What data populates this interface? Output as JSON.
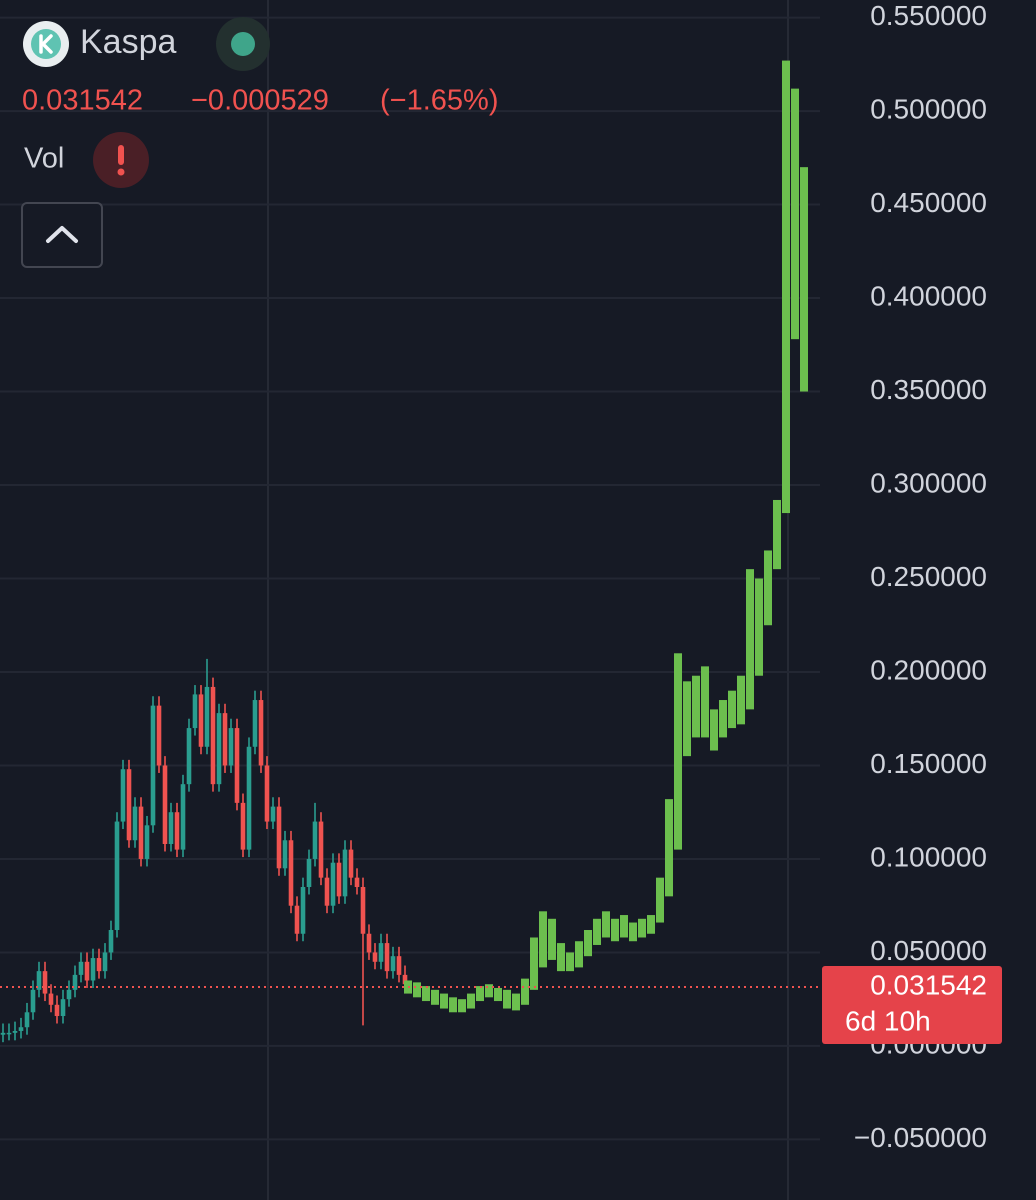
{
  "chart_data": {
    "type": "candlestick",
    "symbol": "Kaspa",
    "last_price": 0.031542,
    "change": "−0.000529",
    "change_percent": "(−1.65%)",
    "volume_label": "Vol",
    "countdown": "6d 10h",
    "ylim": [
      -0.0824,
      0.5594
    ],
    "yticks": [
      {
        "value": 0.55,
        "label": "0.550000"
      },
      {
        "value": 0.5,
        "label": "0.500000"
      },
      {
        "value": 0.45,
        "label": "0.450000"
      },
      {
        "value": 0.4,
        "label": "0.400000"
      },
      {
        "value": 0.35,
        "label": "0.350000"
      },
      {
        "value": 0.3,
        "label": "0.300000"
      },
      {
        "value": 0.25,
        "label": "0.250000"
      },
      {
        "value": 0.2,
        "label": "0.200000"
      },
      {
        "value": 0.15,
        "label": "0.150000"
      },
      {
        "value": 0.1,
        "label": "0.100000"
      },
      {
        "value": 0.05,
        "label": "0.050000"
      },
      {
        "value": 0,
        "label": "0.000000"
      },
      {
        "value": -0.05,
        "label": "−0.050000"
      }
    ],
    "grid": true,
    "up_color": "#2a9d8f",
    "down_color": "#ef5350",
    "open": [
      0.006,
      0.007,
      0.007,
      0.008,
      0.01,
      0.018,
      0.03,
      0.04,
      0.028,
      0.022,
      0.016,
      0.025,
      0.03,
      0.038,
      0.045,
      0.035,
      0.047,
      0.04,
      0.05,
      0.062,
      0.12,
      0.148,
      0.11,
      0.128,
      0.1,
      0.118,
      0.182,
      0.15,
      0.108,
      0.125,
      0.105,
      0.14,
      0.17,
      0.188,
      0.16,
      0.192,
      0.14,
      0.178,
      0.15,
      0.17,
      0.13,
      0.105,
      0.16,
      0.185,
      0.15,
      0.12,
      0.128,
      0.095,
      0.11,
      0.075,
      0.06,
      0.085,
      0.1,
      0.12,
      0.09,
      0.075,
      0.098,
      0.08,
      0.105,
      0.09,
      0.085,
      0.06,
      0.05,
      0.045,
      0.055,
      0.04,
      0.048,
      0.038
    ],
    "high": [
      0.012,
      0.012,
      0.013,
      0.015,
      0.023,
      0.035,
      0.045,
      0.045,
      0.033,
      0.027,
      0.03,
      0.035,
      0.043,
      0.05,
      0.05,
      0.052,
      0.052,
      0.055,
      0.067,
      0.125,
      0.153,
      0.153,
      0.133,
      0.133,
      0.123,
      0.187,
      0.187,
      0.155,
      0.13,
      0.13,
      0.145,
      0.175,
      0.193,
      0.193,
      0.207,
      0.197,
      0.183,
      0.183,
      0.175,
      0.175,
      0.135,
      0.165,
      0.19,
      0.19,
      0.155,
      0.133,
      0.133,
      0.115,
      0.115,
      0.08,
      0.09,
      0.105,
      0.13,
      0.125,
      0.095,
      0.103,
      0.103,
      0.11,
      0.11,
      0.095,
      0.09,
      0.065,
      0.055,
      0.06,
      0.06,
      0.053,
      0.053,
      0.043
    ],
    "low": [
      0.002,
      0.003,
      0.003,
      0.004,
      0.006,
      0.014,
      0.026,
      0.024,
      0.018,
      0.012,
      0.012,
      0.021,
      0.026,
      0.034,
      0.031,
      0.031,
      0.036,
      0.036,
      0.046,
      0.058,
      0.116,
      0.106,
      0.106,
      0.096,
      0.096,
      0.114,
      0.146,
      0.104,
      0.104,
      0.101,
      0.101,
      0.136,
      0.166,
      0.156,
      0.156,
      0.136,
      0.136,
      0.146,
      0.146,
      0.126,
      0.101,
      0.101,
      0.156,
      0.146,
      0.116,
      0.116,
      0.091,
      0.091,
      0.071,
      0.056,
      0.056,
      0.081,
      0.096,
      0.086,
      0.071,
      0.071,
      0.076,
      0.076,
      0.086,
      0.081,
      0.011,
      0.046,
      0.041,
      0.041,
      0.036,
      0.036,
      0.034,
      0.029
    ],
    "close": [
      0.007,
      0.007,
      0.008,
      0.01,
      0.018,
      0.03,
      0.04,
      0.028,
      0.022,
      0.016,
      0.025,
      0.03,
      0.038,
      0.045,
      0.035,
      0.047,
      0.04,
      0.05,
      0.062,
      0.12,
      0.148,
      0.11,
      0.128,
      0.1,
      0.118,
      0.182,
      0.15,
      0.108,
      0.125,
      0.105,
      0.14,
      0.17,
      0.188,
      0.16,
      0.192,
      0.14,
      0.178,
      0.15,
      0.17,
      0.13,
      0.105,
      0.16,
      0.185,
      0.15,
      0.12,
      0.128,
      0.095,
      0.11,
      0.075,
      0.06,
      0.085,
      0.1,
      0.12,
      0.09,
      0.075,
      0.098,
      0.08,
      0.105,
      0.09,
      0.085,
      0.06,
      0.05,
      0.045,
      0.055,
      0.04,
      0.048,
      0.038,
      0.033
    ],
    "projection": {
      "color": "#6cbf4e",
      "open": [
        0.028,
        0.026,
        0.024,
        0.022,
        0.02,
        0.018,
        0.018,
        0.02,
        0.024,
        0.026,
        0.024,
        0.02,
        0.019,
        0.022,
        0.03,
        0.042,
        0.046,
        0.04,
        0.04,
        0.042,
        0.048,
        0.054,
        0.058,
        0.056,
        0.058,
        0.056,
        0.058,
        0.06,
        0.066,
        0.08,
        0.105,
        0.155,
        0.165,
        0.165,
        0.158,
        0.165,
        0.17,
        0.172,
        0.18,
        0.198,
        0.225,
        0.255,
        0.285,
        0.378,
        0.35
      ],
      "close": [
        0.035,
        0.034,
        0.032,
        0.03,
        0.028,
        0.026,
        0.025,
        0.028,
        0.032,
        0.033,
        0.031,
        0.03,
        0.028,
        0.036,
        0.058,
        0.072,
        0.068,
        0.055,
        0.05,
        0.056,
        0.062,
        0.068,
        0.072,
        0.068,
        0.07,
        0.066,
        0.068,
        0.07,
        0.09,
        0.132,
        0.21,
        0.195,
        0.198,
        0.203,
        0.18,
        0.185,
        0.19,
        0.198,
        0.255,
        0.25,
        0.265,
        0.292,
        0.527,
        0.512,
        0.47
      ]
    }
  }
}
